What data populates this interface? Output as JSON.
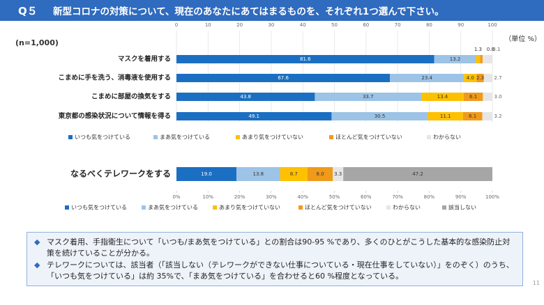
{
  "header": {
    "question": "Q５",
    "title": "新型コロナの対策について、現在のあなたにあてはまるものを、それぞれ1つ選んで下さい。"
  },
  "chart_data": [
    {
      "type": "stacked-hbar",
      "annotation": "(n=1,000)",
      "unit": "（単位 %）",
      "categories": [
        "マスクを着用する",
        "こまめに手を洗う、消毒液を使用する",
        "こまめに部屋の換気をする",
        "東京都の感染状況について情報を得る"
      ],
      "series": [
        {
          "name": "いつも気をつけている",
          "color": "#1b6fc2",
          "values": [
            81.6,
            67.6,
            43.8,
            49.1
          ],
          "value_labels": [
            "81.6",
            "67.6",
            "43.8",
            "49.1"
          ]
        },
        {
          "name": "まあ気をつけている",
          "color": "#9dc3e6",
          "values": [
            13.2,
            23.4,
            33.7,
            30.5
          ],
          "value_labels": [
            "13.2",
            "23.4",
            "33.7",
            "30.5"
          ]
        },
        {
          "name": "あまり気をつけていない",
          "color": "#ffc000",
          "values": [
            1.3,
            4.0,
            13.4,
            11.1
          ],
          "value_labels": [
            "1.3",
            "4.0",
            "13.4",
            "11.1"
          ]
        },
        {
          "name": "ほとんど気をつけていない",
          "color": "#f09a1a",
          "values": [
            0.8,
            2.3,
            6.1,
            6.1
          ],
          "value_labels": [
            "0.8",
            "2.3",
            "6.1",
            "6.1"
          ]
        },
        {
          "name": "わからない",
          "color": "#e7e6e6",
          "values": [
            3.1,
            2.7,
            3.0,
            3.2
          ],
          "value_labels": [
            "3.1",
            "2.7",
            "3.0",
            "3.2"
          ]
        }
      ],
      "xlim": [
        0,
        100
      ],
      "xticks": [
        0,
        10,
        20,
        30,
        40,
        50,
        60,
        70,
        80,
        90,
        100
      ],
      "grid": true,
      "legend": "bottom"
    },
    {
      "type": "stacked-hbar",
      "categories": [
        "なるべくテレワークをする"
      ],
      "series": [
        {
          "name": "いつも気をつけている",
          "color": "#1b6fc2",
          "values": [
            19.0
          ],
          "value_labels": [
            "19.0"
          ]
        },
        {
          "name": "まあ気をつけている",
          "color": "#9dc3e6",
          "values": [
            13.8
          ],
          "value_labels": [
            "13.8"
          ]
        },
        {
          "name": "あまり気をつけていない",
          "color": "#ffc000",
          "values": [
            8.7
          ],
          "value_labels": [
            "8.7"
          ]
        },
        {
          "name": "ほとんど気をつけていない",
          "color": "#f09a1a",
          "values": [
            8.0
          ],
          "value_labels": [
            "8.0"
          ]
        },
        {
          "name": "わからない",
          "color": "#e7e6e6",
          "values": [
            3.3
          ],
          "value_labels": [
            "3.3"
          ]
        },
        {
          "name": "該当しない",
          "color": "#a6a6a6",
          "values": [
            47.2
          ],
          "value_labels": [
            "47.2"
          ]
        }
      ],
      "xlim": [
        0,
        100
      ],
      "xticks": [
        {
          "value": 0,
          "label": "0%"
        },
        {
          "value": 10,
          "label": "10%"
        },
        {
          "value": 20,
          "label": "20%"
        },
        {
          "value": 30,
          "label": "30%"
        },
        {
          "value": 40,
          "label": "40%"
        },
        {
          "value": 50,
          "label": "50%"
        },
        {
          "value": 60,
          "label": "60%"
        },
        {
          "value": 70,
          "label": "70%"
        },
        {
          "value": 80,
          "label": "80%"
        },
        {
          "value": 90,
          "label": "90%"
        },
        {
          "value": 100,
          "label": "100%"
        }
      ],
      "grid": false,
      "legend": "bottom"
    }
  ],
  "notes": [
    "マスク着用、手指衛生について「いつも/まあ気をつけている」との割合は90-95 %であり、多くのひとがこうした基本的な感染防止対策を続けていることが分かる。",
    "テレワークについては、該当者（「該当しない（テレワークができない仕事についている・現在仕事をしていない）」をのぞく）のうち、「いつも気をつけている」は約 35%で、「まあ気をつけている」を合わせると60 %程度となっている。"
  ],
  "page_number": "11"
}
